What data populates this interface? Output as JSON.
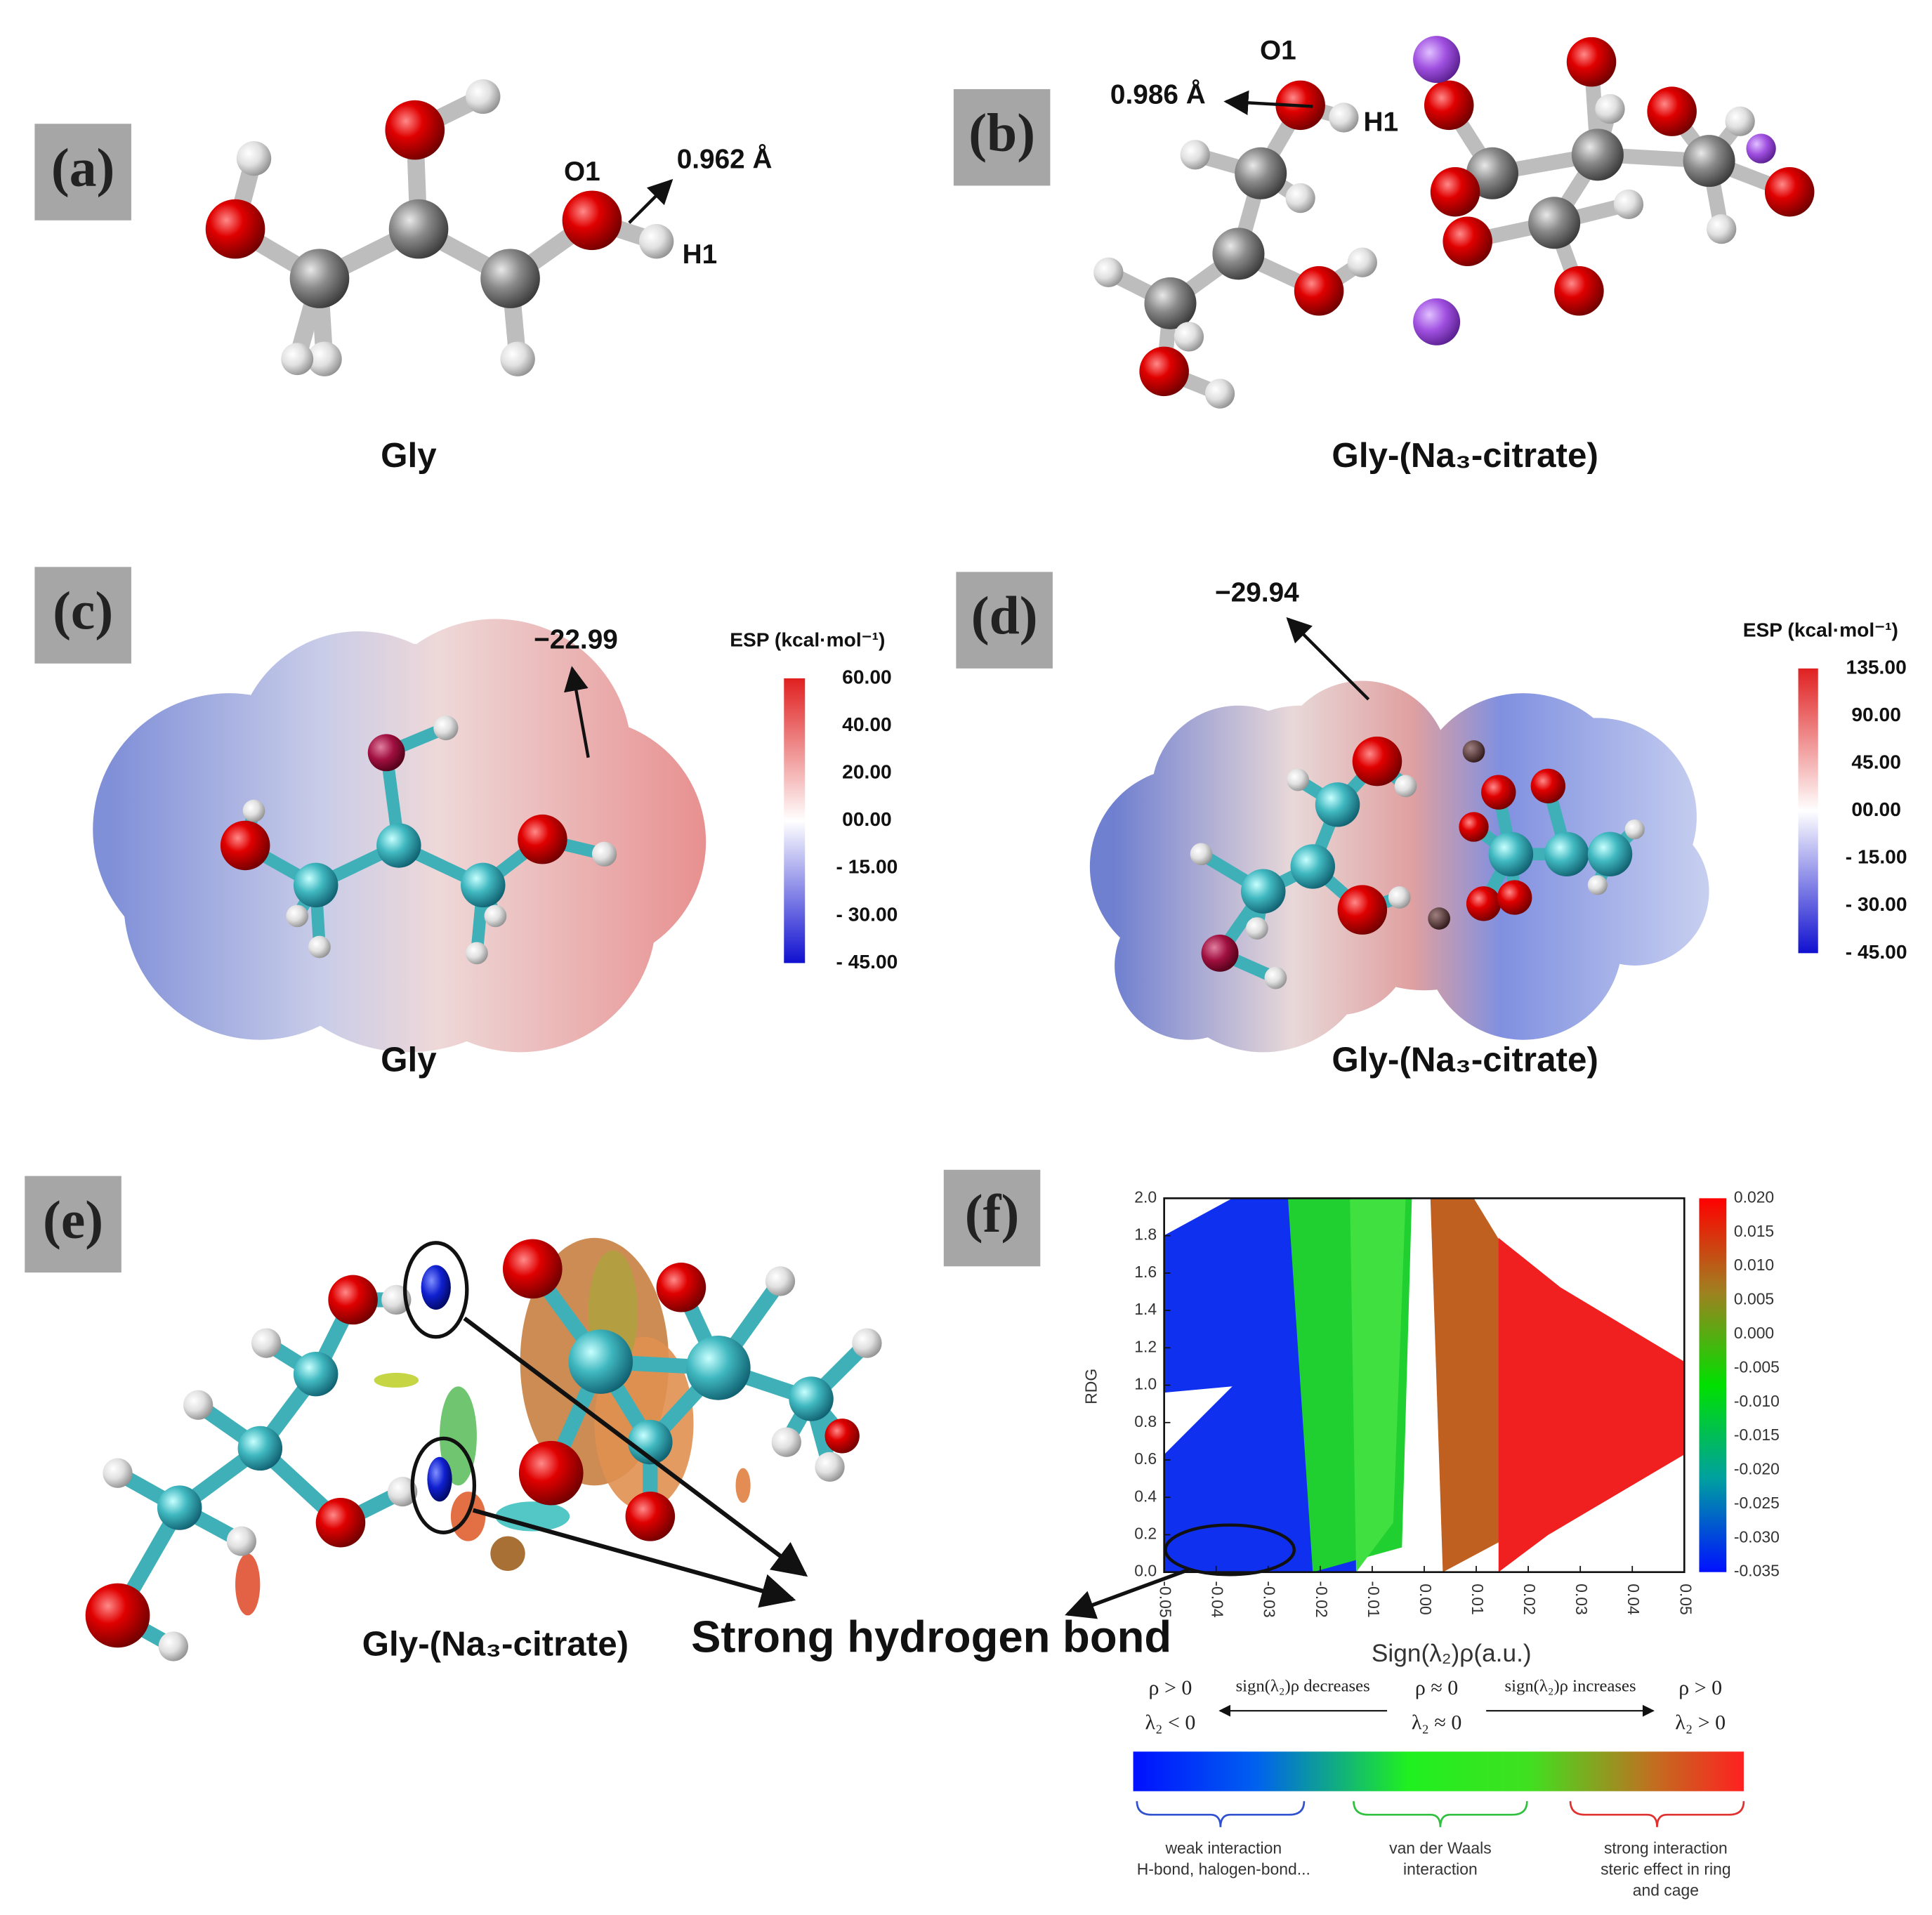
{
  "panel_a": {
    "label": "(a)",
    "caption": "Gly",
    "atom_o": "O1",
    "atom_h": "H1",
    "bond_length": "0.962 Å"
  },
  "panel_b": {
    "label": "(b)",
    "caption": "Gly-(Na₃-citrate)",
    "atom_o": "O1",
    "atom_h": "H1",
    "bond_length": "0.986 Å"
  },
  "panel_c": {
    "label": "(c)",
    "caption": "Gly",
    "esp_min": "−22.99",
    "colorbar_title": "ESP (kcal·mol⁻¹)",
    "colorbar_ticks": [
      "60.00",
      "40.00",
      "20.00",
      "00.00",
      "- 15.00",
      "- 30.00",
      "- 45.00"
    ]
  },
  "panel_d": {
    "label": "(d)",
    "caption": "Gly-(Na₃-citrate)",
    "esp_min": "−29.94",
    "colorbar_title": "ESP (kcal·mol⁻¹)",
    "colorbar_ticks": [
      "135.00",
      "90.00",
      "45.00",
      "00.00",
      "- 15.00",
      "- 30.00",
      "- 45.00"
    ]
  },
  "panel_e": {
    "label": "(e)",
    "caption": "Gly-(Na₃-citrate)",
    "annotation": "Strong hydrogen bond"
  },
  "panel_f": {
    "label": "(f)",
    "x_label": "Sign(λ₂)ρ(a.u.)",
    "y_label": "RDG",
    "x_ticks": [
      "-0.05",
      "-0.04",
      "-0.03",
      "-0.02",
      "-0.01",
      "0.00",
      "0.01",
      "0.02",
      "0.03",
      "0.04",
      "0.05"
    ],
    "y_ticks": [
      "0.0",
      "0.2",
      "0.4",
      "0.6",
      "0.8",
      "1.0",
      "1.2",
      "1.4",
      "1.6",
      "1.8",
      "2.0"
    ],
    "colorbar_ticks": [
      "0.020",
      "0.015",
      "0.010",
      "0.005",
      "0.000",
      "-0.005",
      "-0.010",
      "-0.015",
      "-0.020",
      "-0.025",
      "-0.030",
      "-0.035"
    ],
    "legend": {
      "left_top": "ρ > 0",
      "left_bottom": "λ₂ < 0",
      "decreases": "sign(λ₂)ρ decreases",
      "mid_top": "ρ ≈ 0",
      "mid_bottom": "λ₂ ≈ 0",
      "increases": "sign(λ₂)ρ increases",
      "right_top": "ρ > 0",
      "right_bottom": "λ₂ > 0"
    },
    "regions": [
      [
        "weak interaction",
        "H-bond, halogen-bond..."
      ],
      [
        "van der Waals",
        "interaction"
      ],
      [
        "strong interaction",
        "steric effect in ring",
        "and cage"
      ]
    ]
  }
}
